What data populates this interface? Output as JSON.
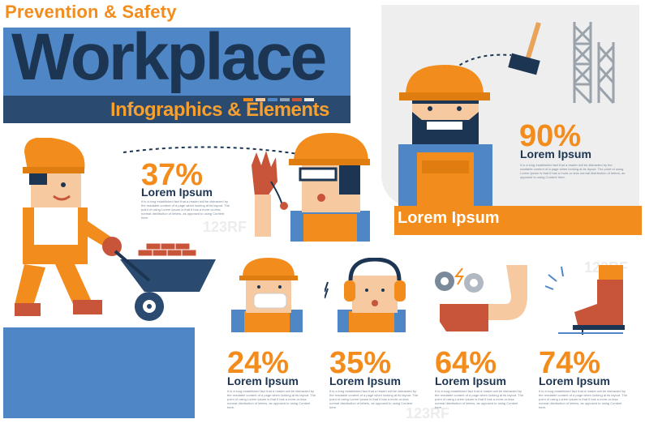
{
  "header": {
    "top_title": "Prevention & Safety",
    "main_title": "Workplace",
    "subtitle": "Infographics & Elements"
  },
  "panel": {
    "percent": "90%",
    "heading": "Lorem Ipsum",
    "body": "It is a long established fact that a reader will be distracted by the readable content of a page when looking at its layout. The point of using Lorem Ipsum is that it has a more-or-less normal distribution of letters, as opposed to using Content here.",
    "bar_label": "Lorem Ipsum"
  },
  "stat_37": {
    "percent": "37%",
    "heading": "Lorem Ipsum",
    "body": "It is a long established fact that a reader will be distracted by the readable content of a page when looking at its layout. The point of using Lorem Ipsum is that it has a more-or-less normal distribution of letters, as opposed to using Content here."
  },
  "stats": [
    {
      "percent": "24%",
      "heading": "Lorem Ipsum",
      "body": "It is a long established fact that a reader will be distracted by the readable content of a page when looking at its layout. The point of using Lorem Ipsum is that it has a more-or-less normal distribution of letters, as opposed to using Content here."
    },
    {
      "percent": "35%",
      "heading": "Lorem Ipsum",
      "body": "It is a long established fact that a reader will be distracted by the readable content of a page when looking at its layout. The point of using Lorem Ipsum is that it has a more-or-less normal distribution of letters, as opposed to using Content here."
    },
    {
      "percent": "64%",
      "heading": "Lorem Ipsum",
      "body": "It is a long established fact that a reader will be distracted by the readable content of a page when looking at its layout. The point of using Lorem Ipsum is that it has a more-or-less normal distribution of letters, as opposed to using Content here."
    },
    {
      "percent": "74%",
      "heading": "Lorem Ipsum",
      "body": "It is a long established fact that a reader will be distracted by the readable content of a page when looking at its layout. The point of using Lorem Ipsum is that it has a more-or-less normal distribution of letters, as opposed to using Content here."
    }
  ],
  "watermark": "123RF",
  "colors": {
    "orange": "#f28c1c",
    "navy": "#1c3552",
    "blue": "#4f86c6",
    "skin": "#f6c9a0",
    "red_brown": "#c8553a"
  },
  "icons": [
    "hammer-icon",
    "scaffold-icon",
    "hard-hat-worker-icon",
    "wheelbarrow-icon",
    "glove-icon",
    "safety-glasses-icon",
    "face-mask-icon",
    "ear-muffs-icon",
    "gears-icon",
    "electric-hand-icon",
    "nail-boot-icon"
  ]
}
